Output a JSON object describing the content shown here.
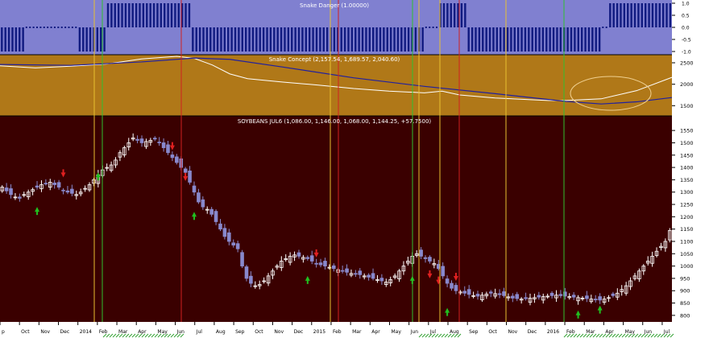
{
  "colors": {
    "panel1_bg": "#8080d0",
    "panel2_bg": "#b07818",
    "panel3_bg": "#3a0000",
    "axis_bg": "#ffffff",
    "bar_color": "#101a80",
    "candle_up": "#ffffff",
    "candle_down": "#8888cc",
    "fast_line": "#ffffff",
    "slow_line": "#2020a0",
    "vline_yellow": "#e8c030",
    "vline_green": "#30c030",
    "vline_red": "#d02020",
    "arrow_up": "#20c020",
    "arrow_down": "#e02020",
    "ellipse": "#f0d090"
  },
  "chart_data": [
    {
      "type": "bar",
      "title": "Snake Danger (1.00000)",
      "yticks": [
        "1.0",
        "0.5",
        "0.0",
        "-0.5",
        "-1.0"
      ],
      "ylim": [
        -1.0,
        1.0
      ],
      "segments": [
        {
          "from": 0,
          "to": 7,
          "value": -1
        },
        {
          "from": 7,
          "to": 22,
          "value": 0
        },
        {
          "from": 22,
          "to": 30,
          "value": -1
        },
        {
          "from": 30,
          "to": 32,
          "value": 1
        },
        {
          "from": 32,
          "to": 54,
          "value": 1
        },
        {
          "from": 54,
          "to": 64,
          "value": -1
        },
        {
          "from": 64,
          "to": 120,
          "value": -1
        },
        {
          "from": 120,
          "to": 124,
          "value": 0
        },
        {
          "from": 124,
          "to": 132,
          "value": 1
        },
        {
          "from": 132,
          "to": 136,
          "value": -1
        },
        {
          "from": 136,
          "to": 170,
          "value": -1
        },
        {
          "from": 170,
          "to": 172,
          "value": 0
        },
        {
          "from": 172,
          "to": 190,
          "value": 1
        }
      ]
    },
    {
      "type": "line",
      "title": "Snake Concept (2,157.54, 1,689.57, 2,040.60)",
      "yticks": [
        "2500",
        "2000",
        "1500"
      ],
      "ylim": [
        1300,
        2650
      ],
      "series": [
        {
          "role": "fast",
          "x": [
            0,
            10,
            20,
            30,
            40,
            45,
            50,
            55,
            60,
            65,
            70,
            80,
            90,
            100,
            110,
            120,
            125,
            130,
            140,
            150,
            155,
            160,
            170,
            180,
            190
          ],
          "values": [
            2430,
            2380,
            2420,
            2470,
            2590,
            2620,
            2650,
            2600,
            2450,
            2240,
            2130,
            2050,
            1980,
            1900,
            1840,
            1800,
            1840,
            1750,
            1680,
            1640,
            1620,
            1620,
            1660,
            1850,
            2160
          ]
        },
        {
          "role": "slow",
          "x": [
            0,
            20,
            40,
            55,
            65,
            80,
            100,
            120,
            140,
            160,
            170,
            180,
            190
          ],
          "values": [
            2460,
            2440,
            2520,
            2610,
            2580,
            2400,
            2150,
            1950,
            1780,
            1600,
            1540,
            1590,
            1690
          ]
        }
      ]
    },
    {
      "type": "candlestick",
      "title": "SOYBEANS JUL6 (1,086.00, 1,146.00, 1,068.00, 1,144.25, +57.7500)",
      "yticks": [
        "1550",
        "1500",
        "1450",
        "1400",
        "1350",
        "1300",
        "1250",
        "1200",
        "1150",
        "1100",
        "1050",
        "1000",
        "950",
        "900",
        "850",
        "800"
      ],
      "ylim": [
        780,
        1570
      ],
      "xticks": [
        "p",
        "Oct",
        "Nov",
        "Dec",
        "2014",
        "Feb",
        "Mar",
        "Apr",
        "May",
        "Jun",
        "Jul",
        "Aug",
        "Sep",
        "Oct",
        "Nov",
        "Dec",
        "2015",
        "Feb",
        "Mar",
        "Apr",
        "May",
        "Jun",
        "Jul",
        "Aug",
        "Sep",
        "Oct",
        "Nov",
        "Dec",
        "2016",
        "Feb",
        "Mar",
        "Apr",
        "May",
        "Jun",
        "Jul"
      ],
      "close": [
        1320,
        1305,
        1290,
        1280,
        1275,
        1290,
        1300,
        1310,
        1320,
        1330,
        1335,
        1340,
        1330,
        1320,
        1305,
        1300,
        1295,
        1290,
        1300,
        1315,
        1330,
        1350,
        1370,
        1390,
        1400,
        1410,
        1430,
        1460,
        1480,
        1500,
        1520,
        1510,
        1500,
        1505,
        1510,
        1515,
        1500,
        1480,
        1460,
        1440,
        1420,
        1400,
        1380,
        1340,
        1300,
        1260,
        1240,
        1230,
        1210,
        1180,
        1150,
        1120,
        1100,
        1085,
        1070,
        1000,
        950,
        930,
        920,
        925,
        940,
        960,
        980,
        1000,
        1020,
        1030,
        1040,
        1045,
        1040,
        1035,
        1030,
        1020,
        1010,
        1005,
        1000,
        995,
        990,
        985,
        980,
        975,
        970,
        968,
        965,
        960,
        955,
        950,
        945,
        940,
        935,
        945,
        960,
        980,
        1000,
        1020,
        1040,
        1050,
        1040,
        1030,
        1020,
        1010,
        990,
        960,
        930,
        910,
        900,
        895,
        890,
        885,
        880,
        878,
        882,
        886,
        890,
        888,
        884,
        880,
        875,
        870,
        868,
        866,
        868,
        870,
        872,
        874,
        876,
        878,
        880,
        882,
        880,
        878,
        876,
        874,
        872,
        870,
        868,
        866,
        864,
        862,
        866,
        872,
        880,
        890,
        905,
        920,
        940,
        960,
        980,
        1000,
        1020,
        1040,
        1060,
        1080,
        1100,
        1144
      ],
      "arrows": [
        {
          "dir": "down",
          "i": 14,
          "price": 1360
        },
        {
          "dir": "up",
          "i": 8,
          "price": 1240
        },
        {
          "dir": "up",
          "i": 22,
          "price": 1380
        },
        {
          "dir": "down",
          "i": 39,
          "price": 1470
        },
        {
          "dir": "down",
          "i": 42,
          "price": 1345
        },
        {
          "dir": "up",
          "i": 44,
          "price": 1220
        },
        {
          "dir": "down",
          "i": 72,
          "price": 1035
        },
        {
          "dir": "up",
          "i": 70,
          "price": 960
        },
        {
          "dir": "up",
          "i": 94,
          "price": 960
        },
        {
          "dir": "down",
          "i": 98,
          "price": 950
        },
        {
          "dir": "down",
          "i": 100,
          "price": 925
        },
        {
          "dir": "down",
          "i": 104,
          "price": 940
        },
        {
          "dir": "up",
          "i": 102,
          "price": 830
        },
        {
          "dir": "up",
          "i": 132,
          "price": 820
        },
        {
          "dir": "up",
          "i": 137,
          "price": 840
        }
      ]
    }
  ],
  "vlines": [
    {
      "x": 117,
      "color": "yellow"
    },
    {
      "x": 127,
      "color": "green"
    },
    {
      "x": 225,
      "color": "red"
    },
    {
      "x": 410,
      "color": "yellow"
    },
    {
      "x": 420,
      "color": "red"
    },
    {
      "x": 512,
      "color": "green"
    },
    {
      "x": 520,
      "color": "yellow"
    },
    {
      "x": 546,
      "color": "yellow"
    },
    {
      "x": 570,
      "color": "red"
    },
    {
      "x": 628,
      "color": "yellow"
    },
    {
      "x": 700,
      "color": "green"
    }
  ]
}
